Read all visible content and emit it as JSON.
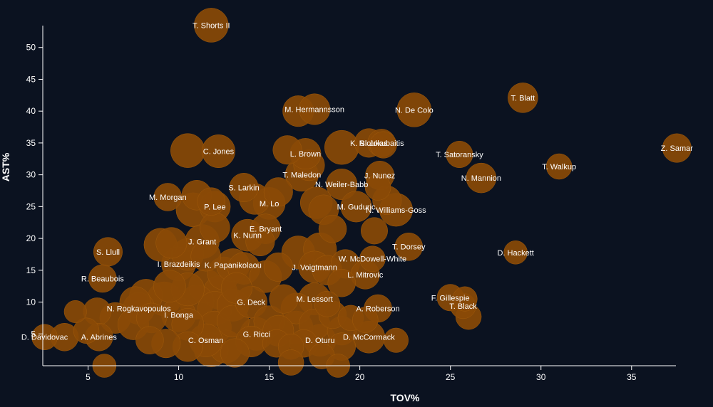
{
  "chart_data": {
    "type": "scatter",
    "title": "",
    "xlabel": "TOV%",
    "ylabel": "AST%",
    "xlim": [
      2.5,
      38
    ],
    "ylim": [
      0,
      55
    ],
    "x_ticks": [
      "5",
      "10",
      "15",
      "20",
      "25",
      "30",
      "35"
    ],
    "y_ticks": [
      "5",
      "10",
      "15",
      "20",
      "25",
      "30",
      "35",
      "40",
      "45",
      "50"
    ],
    "bubble_color": "#8a4a06",
    "labeled_points": [
      {
        "name": "T. Shorts II",
        "x": 11.8,
        "y": 53.5,
        "size": 1.0
      },
      {
        "name": "T. Blatt",
        "x": 29.0,
        "y": 42.1,
        "size": 0.8
      },
      {
        "name": "M. Hermannsson",
        "x": 17.5,
        "y": 40.3,
        "size": 0.85
      },
      {
        "name": "N. De Colo",
        "x": 23.0,
        "y": 40.2,
        "size": 1.0
      },
      {
        "name": "Z. Samar",
        "x": 37.5,
        "y": 34.2,
        "size": 0.75
      },
      {
        "name": "K. Sloukas",
        "x": 20.5,
        "y": 35.0,
        "size": 0.75
      },
      {
        "name": "R. Jokubaitis",
        "x": 21.2,
        "y": 35.0,
        "size": 0.7
      },
      {
        "name": "C. Jones",
        "x": 12.2,
        "y": 33.7,
        "size": 0.95
      },
      {
        "name": "T. Satoransky",
        "x": 25.5,
        "y": 33.2,
        "size": 0.65
      },
      {
        "name": "L. Brown",
        "x": 17.0,
        "y": 33.3,
        "size": 0.85
      },
      {
        "name": "T. Walkup",
        "x": 31.0,
        "y": 31.3,
        "size": 0.6
      },
      {
        "name": "T. Maledon",
        "x": 16.8,
        "y": 30.0,
        "size": 0.95
      },
      {
        "name": "J. Nunez",
        "x": 21.1,
        "y": 29.9,
        "size": 0.75
      },
      {
        "name": "N. Mannion",
        "x": 26.7,
        "y": 29.5,
        "size": 0.8
      },
      {
        "name": "N. Weiler-Babb",
        "x": 19.0,
        "y": 28.5,
        "size": 0.85
      },
      {
        "name": "S. Larkin",
        "x": 13.6,
        "y": 28.0,
        "size": 0.75
      },
      {
        "name": "M. Morgan",
        "x": 9.4,
        "y": 26.5,
        "size": 0.7
      },
      {
        "name": "N. Williams-Goss",
        "x": 22.0,
        "y": 24.5,
        "size": 0.95
      },
      {
        "name": "M. Lo",
        "x": 15.0,
        "y": 25.5,
        "size": 0.9
      },
      {
        "name": "P. Lee",
        "x": 12.0,
        "y": 25.0,
        "size": 0.85
      },
      {
        "name": "M. Guduric",
        "x": 19.8,
        "y": 25.0,
        "size": 0.85
      },
      {
        "name": "K. Nunn",
        "x": 13.8,
        "y": 20.5,
        "size": 0.9
      },
      {
        "name": "E. Bryant",
        "x": 14.8,
        "y": 21.5,
        "size": 0.8
      },
      {
        "name": "J. Grant",
        "x": 11.3,
        "y": 19.5,
        "size": 1.0
      },
      {
        "name": "T. Dorsey",
        "x": 22.7,
        "y": 18.7,
        "size": 0.7
      },
      {
        "name": "S. Llull",
        "x": 6.1,
        "y": 17.9,
        "size": 0.75
      },
      {
        "name": "D. Hackett",
        "x": 28.6,
        "y": 17.8,
        "size": 0.5
      },
      {
        "name": "W. McDowell-White",
        "x": 20.7,
        "y": 16.8,
        "size": 0.6
      },
      {
        "name": "I. Brazdeikis",
        "x": 10.0,
        "y": 16.0,
        "size": 1.0
      },
      {
        "name": "K. Papanikolaou",
        "x": 13.0,
        "y": 15.8,
        "size": 0.95
      },
      {
        "name": "J. Voigtmann",
        "x": 17.5,
        "y": 15.5,
        "size": 0.9
      },
      {
        "name": "L. Mitrovic",
        "x": 20.3,
        "y": 14.3,
        "size": 0.75
      },
      {
        "name": "R. Beaubois",
        "x": 5.8,
        "y": 13.7,
        "size": 0.7
      },
      {
        "name": "F. Gillespie",
        "x": 25.0,
        "y": 10.7,
        "size": 0.65
      },
      {
        "name": "T. Black",
        "x": 25.7,
        "y": 9.4,
        "size": 0.6
      },
      {
        "name": "M. Lessort",
        "x": 17.5,
        "y": 10.5,
        "size": 0.9
      },
      {
        "name": "G. Deck",
        "x": 14.0,
        "y": 10.0,
        "size": 0.9
      },
      {
        "name": "A. Roberson",
        "x": 21.0,
        "y": 9.0,
        "size": 0.7
      },
      {
        "name": "N. Rogkavopoulos",
        "x": 7.8,
        "y": 9.0,
        "size": 0.9
      },
      {
        "name": "I. Bonga",
        "x": 10.0,
        "y": 8.0,
        "size": 1.0
      },
      {
        "name": "D. Davidovac",
        "x": 2.6,
        "y": 4.5,
        "size": 0.6
      },
      {
        "name": "A. Abrines",
        "x": 5.6,
        "y": 4.5,
        "size": 0.7
      },
      {
        "name": "C. Osman",
        "x": 11.5,
        "y": 4.0,
        "size": 0.95
      },
      {
        "name": "G. Ricci",
        "x": 14.3,
        "y": 5.0,
        "size": 0.95
      },
      {
        "name": "D. Oturu",
        "x": 17.8,
        "y": 4.0,
        "size": 0.9
      },
      {
        "name": "D. McCormack",
        "x": 20.5,
        "y": 4.5,
        "size": 0.9
      }
    ],
    "unlabeled_points": [
      {
        "x": 10.5,
        "y": 33.8,
        "size": 1.0
      },
      {
        "x": 16.6,
        "y": 40.0,
        "size": 0.85
      },
      {
        "x": 16.0,
        "y": 33.9,
        "size": 0.75
      },
      {
        "x": 19.0,
        "y": 34.3,
        "size": 1.0
      },
      {
        "x": 21.3,
        "y": 34.7,
        "size": 0.65
      },
      {
        "x": 17.2,
        "y": 31.5,
        "size": 0.85
      },
      {
        "x": 15.5,
        "y": 27.3,
        "size": 0.75
      },
      {
        "x": 11.0,
        "y": 26.8,
        "size": 0.8
      },
      {
        "x": 11.8,
        "y": 25.8,
        "size": 0.7
      },
      {
        "x": 10.8,
        "y": 24.5,
        "size": 1.0
      },
      {
        "x": 14.2,
        "y": 26.2,
        "size": 0.85
      },
      {
        "x": 17.6,
        "y": 25.6,
        "size": 0.9
      },
      {
        "x": 18.0,
        "y": 24.5,
        "size": 0.8
      },
      {
        "x": 21.5,
        "y": 26.0,
        "size": 0.75
      },
      {
        "x": 21.0,
        "y": 28.0,
        "size": 0.6
      },
      {
        "x": 18.5,
        "y": 21.5,
        "size": 0.7
      },
      {
        "x": 20.8,
        "y": 21.2,
        "size": 0.65
      },
      {
        "x": 12.0,
        "y": 21.7,
        "size": 0.8
      },
      {
        "x": 9.0,
        "y": 19.0,
        "size": 0.95
      },
      {
        "x": 9.6,
        "y": 19.3,
        "size": 0.85
      },
      {
        "x": 10.5,
        "y": 17.5,
        "size": 0.9
      },
      {
        "x": 11.5,
        "y": 17.2,
        "size": 0.8
      },
      {
        "x": 14.5,
        "y": 19.5,
        "size": 0.75
      },
      {
        "x": 16.6,
        "y": 17.8,
        "size": 0.95
      },
      {
        "x": 17.8,
        "y": 18.3,
        "size": 0.95
      },
      {
        "x": 19.2,
        "y": 16.0,
        "size": 0.75
      },
      {
        "x": 12.5,
        "y": 14.5,
        "size": 0.95
      },
      {
        "x": 13.6,
        "y": 15.3,
        "size": 0.9
      },
      {
        "x": 14.8,
        "y": 14.0,
        "size": 0.9
      },
      {
        "x": 15.5,
        "y": 15.5,
        "size": 0.75
      },
      {
        "x": 18.2,
        "y": 15.0,
        "size": 0.8
      },
      {
        "x": 19.0,
        "y": 13.0,
        "size": 0.7
      },
      {
        "x": 9.5,
        "y": 12.5,
        "size": 0.9
      },
      {
        "x": 10.5,
        "y": 12.0,
        "size": 0.95
      },
      {
        "x": 11.5,
        "y": 12.5,
        "size": 1.0
      },
      {
        "x": 12.3,
        "y": 11.5,
        "size": 1.0
      },
      {
        "x": 13.2,
        "y": 12.2,
        "size": 0.85
      },
      {
        "x": 8.2,
        "y": 11.0,
        "size": 0.95
      },
      {
        "x": 9.2,
        "y": 10.5,
        "size": 1.0
      },
      {
        "x": 7.6,
        "y": 10.0,
        "size": 0.85
      },
      {
        "x": 11.0,
        "y": 10.0,
        "size": 1.0
      },
      {
        "x": 12.0,
        "y": 9.0,
        "size": 1.0
      },
      {
        "x": 13.0,
        "y": 9.5,
        "size": 0.9
      },
      {
        "x": 15.8,
        "y": 10.5,
        "size": 0.75
      },
      {
        "x": 16.5,
        "y": 9.0,
        "size": 0.85
      },
      {
        "x": 18.2,
        "y": 9.7,
        "size": 0.6
      },
      {
        "x": 18.5,
        "y": 8.0,
        "size": 0.7
      },
      {
        "x": 19.5,
        "y": 7.5,
        "size": 0.6
      },
      {
        "x": 20.3,
        "y": 7.2,
        "size": 0.6
      },
      {
        "x": 5.5,
        "y": 8.5,
        "size": 0.7
      },
      {
        "x": 6.5,
        "y": 7.5,
        "size": 0.85
      },
      {
        "x": 7.5,
        "y": 6.5,
        "size": 0.85
      },
      {
        "x": 8.5,
        "y": 7.5,
        "size": 0.8
      },
      {
        "x": 10.5,
        "y": 6.5,
        "size": 0.9
      },
      {
        "x": 12.0,
        "y": 6.0,
        "size": 0.95
      },
      {
        "x": 13.0,
        "y": 7.0,
        "size": 0.9
      },
      {
        "x": 15.0,
        "y": 7.0,
        "size": 0.85
      },
      {
        "x": 15.5,
        "y": 5.5,
        "size": 0.85
      },
      {
        "x": 16.5,
        "y": 6.0,
        "size": 0.95
      },
      {
        "x": 17.5,
        "y": 6.5,
        "size": 0.85
      },
      {
        "x": 19.0,
        "y": 5.5,
        "size": 0.75
      },
      {
        "x": 4.3,
        "y": 8.5,
        "size": 0.45
      },
      {
        "x": 3.7,
        "y": 4.5,
        "size": 0.7
      },
      {
        "x": 4.9,
        "y": 5.5,
        "size": 0.6
      },
      {
        "x": 8.4,
        "y": 4.0,
        "size": 0.7
      },
      {
        "x": 9.3,
        "y": 3.5,
        "size": 0.75
      },
      {
        "x": 10.5,
        "y": 3.0,
        "size": 0.8
      },
      {
        "x": 11.8,
        "y": 2.5,
        "size": 1.0
      },
      {
        "x": 12.6,
        "y": 3.0,
        "size": 0.95
      },
      {
        "x": 13.1,
        "y": 2.0,
        "size": 0.75
      },
      {
        "x": 14.0,
        "y": 3.8,
        "size": 0.85
      },
      {
        "x": 15.4,
        "y": 3.5,
        "size": 0.7
      },
      {
        "x": 16.2,
        "y": 3.0,
        "size": 0.6
      },
      {
        "x": 16.9,
        "y": 3.5,
        "size": 0.7
      },
      {
        "x": 17.9,
        "y": 1.5,
        "size": 0.6
      },
      {
        "x": 19.0,
        "y": 3.0,
        "size": 0.7
      },
      {
        "x": 5.9,
        "y": 0.0,
        "size": 0.5
      },
      {
        "x": 16.2,
        "y": 0.5,
        "size": 0.6
      },
      {
        "x": 18.8,
        "y": 0.0,
        "size": 0.5
      },
      {
        "x": 22.0,
        "y": 4.0,
        "size": 0.55
      },
      {
        "x": 25.8,
        "y": 10.5,
        "size": 0.55
      },
      {
        "x": 26.0,
        "y": 7.7,
        "size": 0.6
      }
    ]
  }
}
